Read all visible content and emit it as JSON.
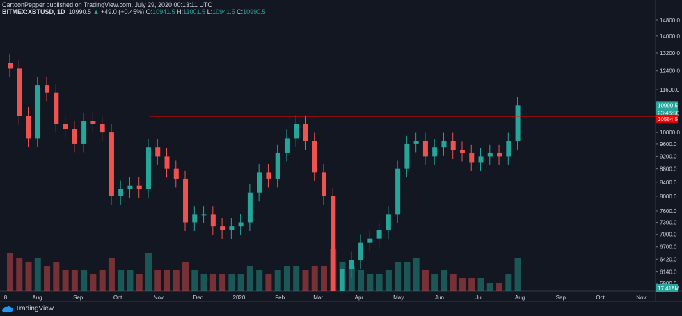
{
  "header": {
    "published": "CartoonPepper published on TradingView.com, July 29, 2020 00:13:11 UTC",
    "symbol": "BITMEX:XBTUSD, 1D",
    "last": "10990.5",
    "change": "+49.0 (+0.45%)",
    "o_label": "O:",
    "o": "10941.5",
    "h_label": "H:",
    "h": "11001.5",
    "l_label": "L:",
    "l": "10941.5",
    "c_label": "C:",
    "c": "10990.5"
  },
  "colors": {
    "up": "#26a69a",
    "down": "#ef5350",
    "line": "#ff0000",
    "bg": "#131722"
  },
  "branding": "TradingView",
  "chart_data": {
    "type": "candlestick",
    "scale": "log",
    "ylim": [
      5900,
      14800
    ],
    "y_ticks": [
      "14800.0",
      "14000.0",
      "13200.0",
      "12400.0",
      "11600.0",
      "10000.0",
      "9600.0",
      "9200.0",
      "8800.0",
      "8400.0",
      "8000.0",
      "7600.0",
      "7300.0",
      "7000.0",
      "6700.0",
      "6420.0",
      "6140.0",
      "5900.0"
    ],
    "x_ticks": [
      "8",
      "Aug",
      "Sep",
      "Oct",
      "Nov",
      "Dec",
      "2020",
      "Feb",
      "Mar",
      "Apr",
      "May",
      "Jun",
      "Jul",
      "Aug",
      "Sep",
      "Oct",
      "Nov"
    ],
    "week_starts": [
      "2019-07-08",
      "2019-07-15",
      "2019-07-22",
      "2019-07-29",
      "2019-08-05",
      "2019-08-12",
      "2019-08-19",
      "2019-08-26",
      "2019-09-02",
      "2019-09-09",
      "2019-09-16",
      "2019-09-23",
      "2019-09-30",
      "2019-10-07",
      "2019-10-14",
      "2019-10-21",
      "2019-10-28",
      "2019-11-04",
      "2019-11-11",
      "2019-11-18",
      "2019-11-25",
      "2019-12-02",
      "2019-12-09",
      "2019-12-16",
      "2019-12-23",
      "2019-12-30",
      "2020-01-06",
      "2020-01-13",
      "2020-01-20",
      "2020-01-27",
      "2020-02-03",
      "2020-02-10",
      "2020-02-17",
      "2020-02-24",
      "2020-03-02",
      "2020-03-09",
      "2020-03-16",
      "2020-03-23",
      "2020-03-30",
      "2020-04-06",
      "2020-04-13",
      "2020-04-20",
      "2020-04-27",
      "2020-05-04",
      "2020-05-11",
      "2020-05-18",
      "2020-05-25",
      "2020-06-01",
      "2020-06-08",
      "2020-06-15",
      "2020-06-22",
      "2020-06-29",
      "2020-07-06",
      "2020-07-13",
      "2020-07-20",
      "2020-07-27"
    ],
    "closes": [
      12500,
      10600,
      9800,
      11800,
      11500,
      10300,
      10100,
      9600,
      10400,
      10300,
      10000,
      8000,
      8200,
      8300,
      8200,
      9500,
      9200,
      8800,
      8500,
      7300,
      7500,
      7500,
      7200,
      7100,
      7200,
      7300,
      8100,
      8700,
      8500,
      9300,
      9800,
      10300,
      9700,
      8700,
      8000,
      5300,
      6200,
      6400,
      6800,
      6900,
      7100,
      7500,
      8800,
      9600,
      9700,
      9200,
      9500,
      9700,
      9400,
      9300,
      9000,
      9200,
      9300,
      9200,
      9700,
      10990
    ],
    "volume": [
      9,
      8,
      7,
      8,
      6,
      7,
      5,
      5,
      5,
      4,
      5,
      8,
      5,
      5,
      4,
      9,
      5,
      5,
      5,
      7,
      5,
      4,
      4,
      4,
      4,
      4,
      6,
      5,
      4,
      5,
      6,
      6,
      5,
      6,
      6,
      10,
      7,
      6,
      5,
      4,
      4,
      5,
      7,
      7,
      8,
      5,
      4,
      5,
      4,
      3,
      3,
      3,
      2,
      2,
      4,
      8
    ],
    "hline": {
      "value": 10584.5,
      "label": "10584.5",
      "from": "2019-10-25"
    },
    "last_label": "10990.5",
    "countdown": "23:46:50",
    "volume_label": "17.418M"
  }
}
